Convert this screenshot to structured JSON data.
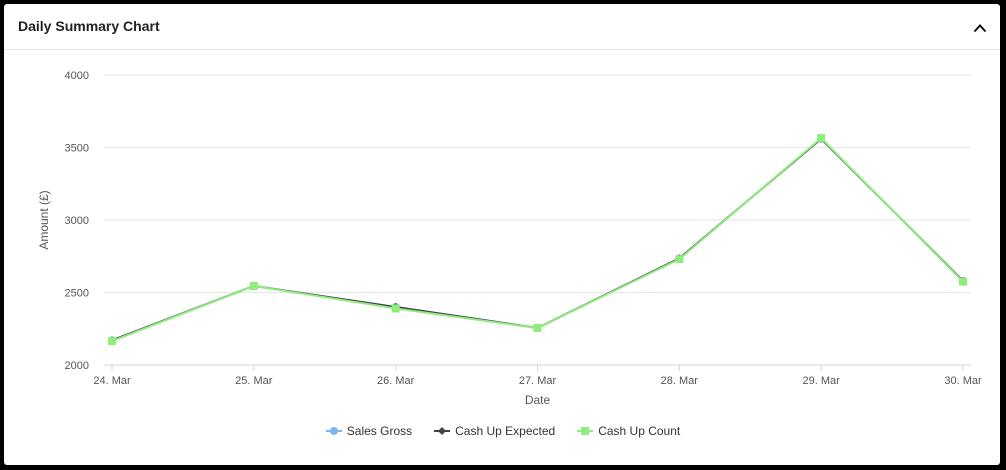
{
  "panel": {
    "title": "Daily Summary Chart",
    "collapse_icon": "chevron-up-icon"
  },
  "chart_data": {
    "type": "line",
    "title": "",
    "xlabel": "Date",
    "ylabel": "Amount (£)",
    "categories": [
      "24. Mar",
      "25. Mar",
      "26. Mar",
      "27. Mar",
      "28. Mar",
      "29. Mar",
      "30. Mar"
    ],
    "ylim": [
      2000,
      4000
    ],
    "yticks": [
      2000,
      2500,
      3000,
      3500,
      4000
    ],
    "grid": true,
    "legend_position": "bottom",
    "series": [
      {
        "name": "Sales Gross",
        "color": "#7cb5ec",
        "marker": "circle",
        "values": [
          2170,
          2545,
          2400,
          2255,
          2735,
          3560,
          2580
        ]
      },
      {
        "name": "Cash Up Expected",
        "color": "#434348",
        "marker": "diamond",
        "values": [
          2170,
          2545,
          2400,
          2255,
          2735,
          3560,
          2580
        ]
      },
      {
        "name": "Cash Up Count",
        "color": "#90ed7d",
        "marker": "square",
        "values": [
          2165,
          2545,
          2390,
          2255,
          2730,
          3565,
          2575
        ]
      }
    ]
  }
}
